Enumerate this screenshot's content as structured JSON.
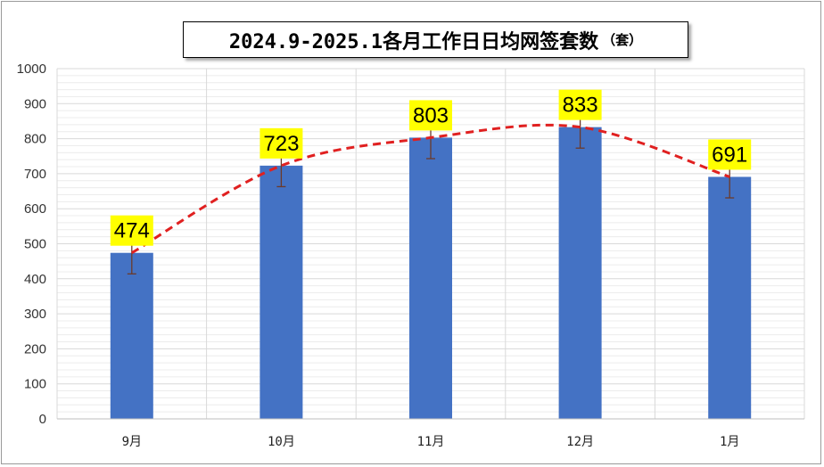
{
  "title": "2024.9-2025.1各月工作日日均网签套数",
  "title_unit": "（套）",
  "chart_data": {
    "type": "bar",
    "title": "2024.9-2025.1各月工作日日均网签套数（套）",
    "categories": [
      "9月",
      "10月",
      "11月",
      "12月",
      "1月"
    ],
    "values": [
      474,
      723,
      803,
      833,
      691
    ],
    "data_labels": [
      "474",
      "723",
      "803",
      "833",
      "691"
    ],
    "ylim": [
      0,
      1000
    ],
    "yticks": [
      0,
      100,
      200,
      300,
      400,
      500,
      600,
      700,
      800,
      900,
      1000
    ],
    "error_bar": 60,
    "trendline": "smooth dashed line",
    "grid": true,
    "legend": "none",
    "colors": {
      "bar": "#4472C4",
      "label_bg": "#FFFF00",
      "trendline": "#E02020",
      "error_bar": "#6B3A2A",
      "grid": "#D9D9D9"
    }
  }
}
